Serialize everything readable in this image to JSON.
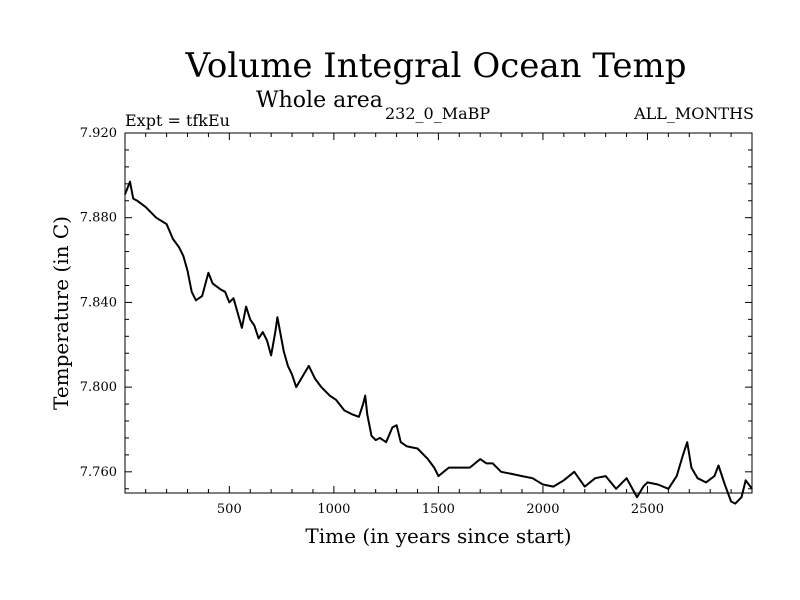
{
  "chart_data": {
    "type": "line",
    "title": "Volume Integral Ocean Temp",
    "subtitle": "Whole area",
    "left_label": "Expt = tfkEu",
    "center_label": "232_0_MaBP",
    "right_label": "ALL_MONTHS",
    "xlabel": "Time (in years since start)",
    "ylabel": "Temperature (in C)",
    "xlim": [
      1,
      3000
    ],
    "ylim": [
      7.75,
      7.92
    ],
    "x_ticks": [
      500,
      1000,
      1500,
      2000,
      2500
    ],
    "y_ticks": [
      "7.760",
      "7.800",
      "7.840",
      "7.880",
      "7.920"
    ],
    "grid": false,
    "series": [
      {
        "x": [
          1,
          25,
          40,
          60,
          100,
          150,
          200,
          230,
          260,
          280,
          300,
          320,
          340,
          370,
          400,
          420,
          460,
          480,
          500,
          520,
          540,
          560,
          580,
          600,
          620,
          640,
          660,
          680,
          700,
          720,
          730,
          760,
          780,
          800,
          820,
          850,
          880,
          910,
          940,
          980,
          1010,
          1050,
          1090,
          1120,
          1140,
          1150,
          1160,
          1180,
          1200,
          1220,
          1250,
          1280,
          1300,
          1320,
          1350,
          1400,
          1450,
          1480,
          1500,
          1550,
          1600,
          1650,
          1700,
          1730,
          1760,
          1800,
          1850,
          1900,
          1950,
          2000,
          2050,
          2100,
          2150,
          2200,
          2250,
          2300,
          2350,
          2400,
          2450,
          2480,
          2500,
          2550,
          2600,
          2640,
          2670,
          2690,
          2710,
          2740,
          2780,
          2820,
          2840,
          2870,
          2900,
          2920,
          2950,
          2970,
          3000
        ],
        "y": [
          7.891,
          7.897,
          7.889,
          7.888,
          7.885,
          7.88,
          7.877,
          7.87,
          7.866,
          7.862,
          7.855,
          7.845,
          7.841,
          7.843,
          7.854,
          7.849,
          7.846,
          7.845,
          7.84,
          7.842,
          7.835,
          7.828,
          7.838,
          7.832,
          7.829,
          7.823,
          7.826,
          7.822,
          7.815,
          7.826,
          7.833,
          7.817,
          7.81,
          7.806,
          7.8,
          7.805,
          7.81,
          7.804,
          7.8,
          7.796,
          7.794,
          7.789,
          7.787,
          7.786,
          7.792,
          7.796,
          7.787,
          7.777,
          7.775,
          7.776,
          7.774,
          7.781,
          7.782,
          7.774,
          7.772,
          7.771,
          7.766,
          7.762,
          7.758,
          7.762,
          7.762,
          7.762,
          7.766,
          7.764,
          7.764,
          7.76,
          7.759,
          7.758,
          7.757,
          7.754,
          7.753,
          7.756,
          7.76,
          7.753,
          7.757,
          7.758,
          7.752,
          7.757,
          7.748,
          7.753,
          7.755,
          7.754,
          7.752,
          7.758,
          7.768,
          7.774,
          7.762,
          7.757,
          7.755,
          7.758,
          7.763,
          7.754,
          7.746,
          7.745,
          7.748,
          7.756,
          7.752
        ]
      }
    ]
  }
}
